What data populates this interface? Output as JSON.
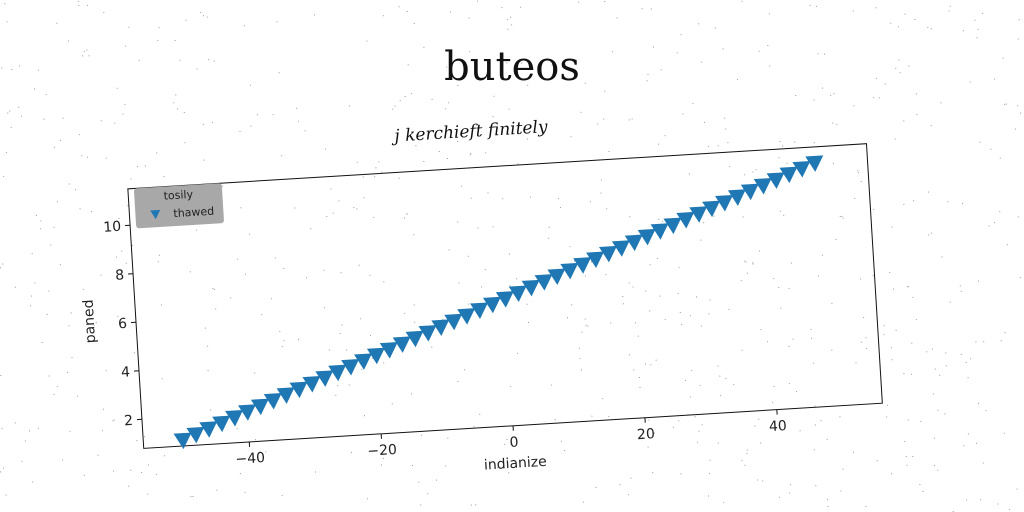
{
  "title": "buteos",
  "chart_data": {
    "type": "scatter",
    "title": "j kerchieft finitely",
    "xlabel": "indianize",
    "ylabel": "paned",
    "xlim": [
      -56,
      56
    ],
    "ylim": [
      0.8,
      11.5
    ],
    "xticks": [
      -40,
      -20,
      0,
      20,
      40
    ],
    "yticks": [
      2,
      4,
      6,
      8,
      10
    ],
    "grid": false,
    "legend": {
      "title": "tosily",
      "placement": "top-left"
    },
    "series": [
      {
        "name": "thawed",
        "marker": "triangle-down",
        "color": "#1f77b4",
        "x": [
          -50,
          -48,
          -46,
          -44,
          -42,
          -40,
          -38,
          -36,
          -34,
          -32,
          -30,
          -28,
          -26,
          -24,
          -22,
          -20,
          -18,
          -16,
          -14,
          -12,
          -10,
          -8,
          -6,
          -4,
          -2,
          0,
          2,
          4,
          6,
          8,
          10,
          12,
          14,
          16,
          18,
          20,
          22,
          24,
          26,
          28,
          30,
          32,
          34,
          36,
          38,
          40,
          42,
          44,
          46,
          48
        ],
        "y": [
          1.0,
          1.2,
          1.4,
          1.6,
          1.8,
          2.0,
          2.2,
          2.4,
          2.6,
          2.8,
          3.0,
          3.2,
          3.4,
          3.6,
          3.8,
          4.0,
          4.2,
          4.4,
          4.6,
          4.8,
          5.0,
          5.2,
          5.4,
          5.6,
          5.8,
          6.0,
          6.2,
          6.4,
          6.6,
          6.8,
          7.0,
          7.2,
          7.4,
          7.6,
          7.8,
          8.0,
          8.2,
          8.4,
          8.6,
          8.8,
          9.0,
          9.2,
          9.4,
          9.6,
          9.8,
          10.0,
          10.2,
          10.4,
          10.6,
          10.8
        ]
      }
    ]
  }
}
